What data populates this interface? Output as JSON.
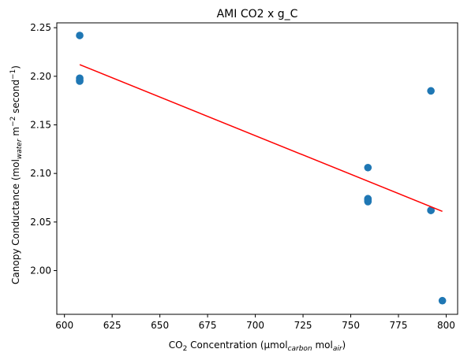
{
  "chart_data": {
    "type": "scatter",
    "title": "AMI CO2 x g_C",
    "xlabel": {
      "main": "CO",
      "main_sub": "2",
      "rest": " Concentration (µmol",
      "sub1": "carbon",
      "mid": " mol",
      "sub2": "air",
      "end": ")"
    },
    "ylabel": {
      "pre": "Canopy Conductance (mol",
      "sub": "water",
      "mid1": " m",
      "sup1": "−2",
      "mid2": " second",
      "sup2": "−1",
      "end": ")"
    },
    "xlim": [
      596,
      806
    ],
    "ylim": [
      1.955,
      2.255
    ],
    "xticks": [
      600,
      625,
      650,
      675,
      700,
      725,
      750,
      775,
      800
    ],
    "yticks": [
      "2.00",
      "2.05",
      "2.10",
      "2.15",
      "2.20",
      "2.25"
    ],
    "x": [
      608,
      608,
      608,
      608,
      759,
      759,
      759,
      759,
      792,
      792,
      792,
      798
    ],
    "y": [
      2.242,
      2.198,
      2.196,
      2.195,
      2.106,
      2.074,
      2.073,
      2.071,
      2.185,
      2.062,
      2.062,
      1.969
    ],
    "fit_line": {
      "x": [
        608,
        798
      ],
      "y": [
        2.212,
        2.061
      ]
    },
    "point_color": "#1f77b4",
    "line_color": "#ff0000",
    "grid": false,
    "legend": "none"
  }
}
